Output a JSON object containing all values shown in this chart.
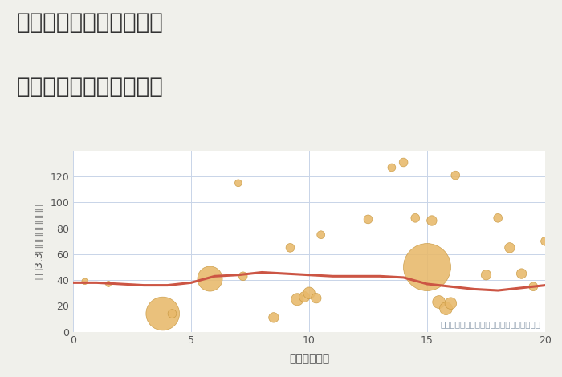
{
  "title_line1": "岐阜県岐阜市柳ヶ瀬通の",
  "title_line2": "駅距離別中古戸建て価格",
  "xlabel": "駅距離（分）",
  "ylabel": "坪（3.3㎡）単価（万円）",
  "background_color": "#f0f0eb",
  "plot_bg_color": "#ffffff",
  "xlim": [
    0,
    20
  ],
  "ylim": [
    0,
    140
  ],
  "yticks": [
    0,
    20,
    40,
    60,
    80,
    100,
    120
  ],
  "xticks": [
    0,
    5,
    10,
    15,
    20
  ],
  "scatter_color": "#e8b96a",
  "scatter_edge": "#c89840",
  "line_color": "#cc5544",
  "annotation": "円の大きさは、取引のあった物件面積を示す",
  "scatter_x": [
    0.5,
    1.5,
    3.8,
    4.2,
    5.8,
    7.0,
    7.2,
    8.5,
    9.2,
    9.5,
    9.8,
    10.0,
    10.3,
    10.5,
    12.5,
    13.5,
    14.0,
    14.5,
    15.0,
    15.2,
    15.5,
    15.8,
    16.0,
    16.2,
    17.5,
    18.0,
    18.5,
    19.0,
    19.5,
    20.0
  ],
  "scatter_y": [
    39,
    37,
    14,
    14,
    41,
    115,
    43,
    11,
    65,
    25,
    27,
    30,
    26,
    75,
    87,
    127,
    131,
    88,
    50,
    86,
    23,
    18,
    22,
    121,
    44,
    88,
    65,
    45,
    35,
    70
  ],
  "scatter_size": [
    30,
    25,
    900,
    60,
    500,
    40,
    60,
    80,
    60,
    120,
    90,
    110,
    80,
    50,
    60,
    50,
    60,
    60,
    1800,
    80,
    130,
    130,
    110,
    60,
    80,
    60,
    80,
    80,
    60,
    60
  ],
  "line_x": [
    0,
    1,
    2,
    3,
    4,
    5,
    6,
    7,
    8,
    9,
    10,
    11,
    12,
    13,
    14,
    15,
    16,
    17,
    18,
    19,
    20
  ],
  "line_y": [
    38,
    38,
    37,
    36,
    36,
    38,
    43,
    44,
    46,
    45,
    44,
    43,
    43,
    43,
    42,
    37,
    35,
    33,
    32,
    34,
    36
  ]
}
